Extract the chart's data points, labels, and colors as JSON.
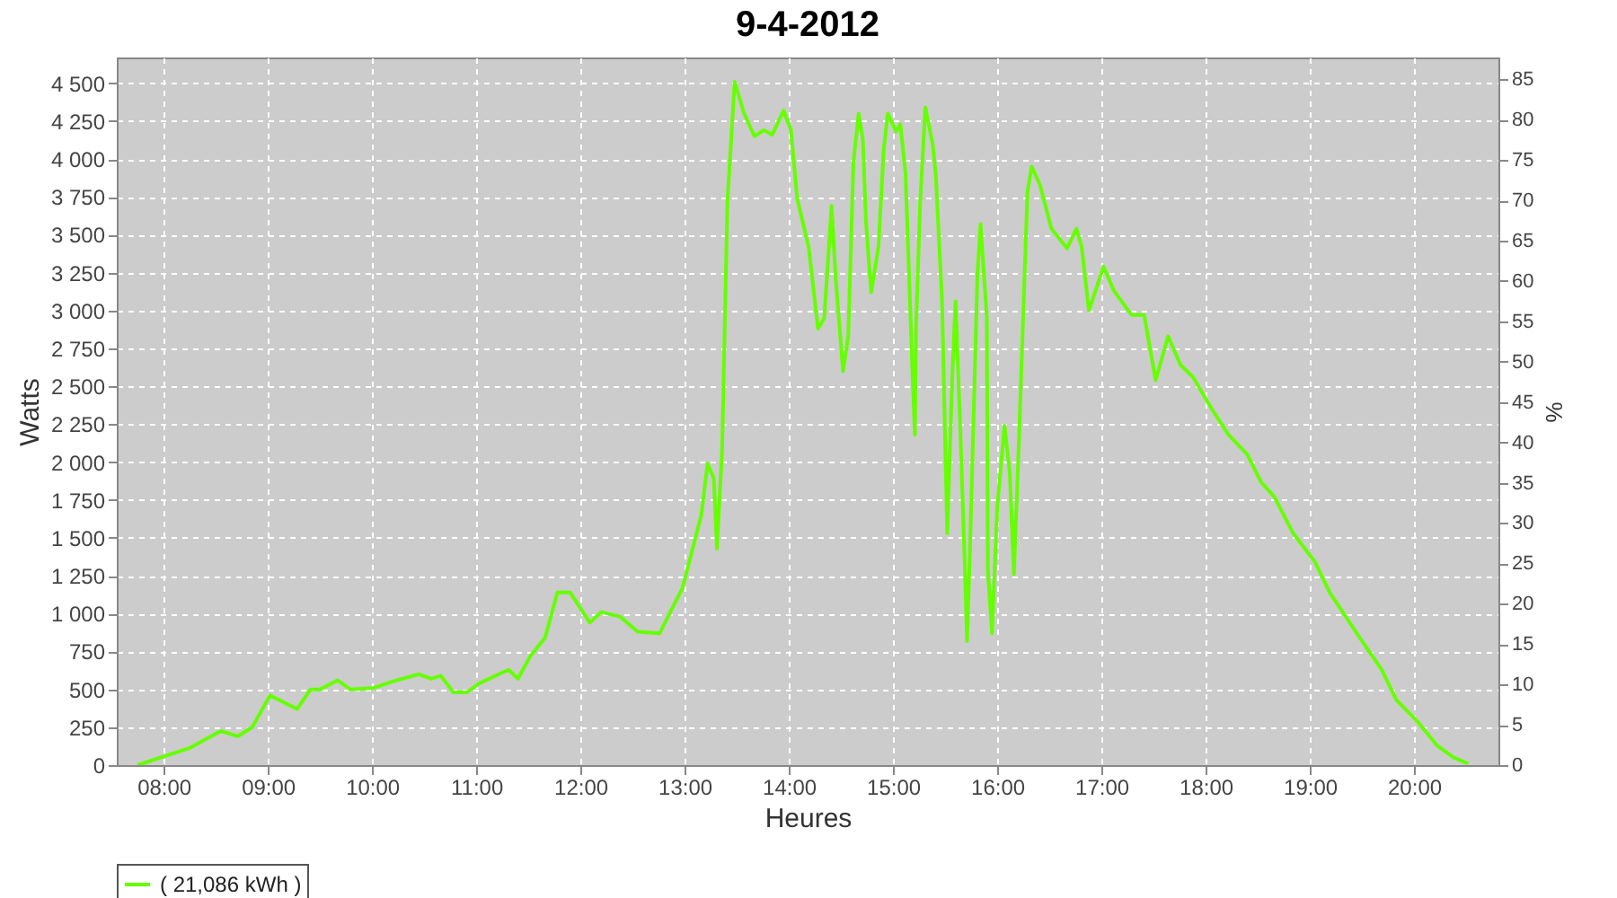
{
  "chart_data": {
    "type": "line",
    "title": "9-4-2012",
    "xlabel": "Heures",
    "ylabel": "Watts",
    "y2label": "%",
    "x": [
      7.75,
      8.24,
      8.55,
      8.71,
      8.85,
      9.02,
      9.28,
      9.41,
      9.5,
      9.67,
      9.79,
      10.02,
      10.19,
      10.45,
      10.57,
      10.66,
      10.78,
      10.91,
      11.03,
      11.31,
      11.4,
      11.52,
      11.66,
      11.78,
      11.9,
      12.09,
      12.2,
      12.38,
      12.55,
      12.76,
      12.98,
      13.16,
      13.22,
      13.28,
      13.31,
      13.36,
      13.41,
      13.48,
      13.57,
      13.67,
      13.76,
      13.84,
      13.95,
      14.02,
      14.08,
      14.19,
      14.28,
      14.34,
      14.41,
      14.45,
      14.52,
      14.57,
      14.62,
      14.67,
      14.71,
      14.74,
      14.79,
      14.86,
      14.91,
      14.95,
      15.03,
      15.07,
      15.12,
      15.19,
      15.21,
      15.22,
      15.26,
      15.31,
      15.38,
      15.41,
      15.47,
      15.52,
      15.57,
      15.6,
      15.64,
      15.69,
      15.71,
      15.74,
      15.81,
      15.84,
      15.9,
      15.91,
      15.95,
      16.0,
      16.07,
      16.12,
      16.16,
      16.21,
      16.26,
      16.29,
      16.33,
      16.41,
      16.52,
      16.67,
      16.76,
      16.81,
      16.88,
      17.02,
      17.12,
      17.29,
      17.41,
      17.52,
      17.64,
      17.76,
      17.88,
      18.05,
      18.22,
      18.4,
      18.53,
      18.66,
      18.84,
      19.05,
      19.19,
      19.48,
      19.69,
      19.83,
      20.03,
      20.22,
      20.38,
      20.52
    ],
    "series": [
      {
        "name": "( 21,086 kWh )",
        "color": "#66ff00",
        "values": [
          0,
          110,
          225,
          190,
          250,
          460,
          370,
          500,
          500,
          560,
          500,
          510,
          550,
          600,
          570,
          590,
          480,
          480,
          540,
          630,
          570,
          720,
          840,
          1140,
          1140,
          940,
          1010,
          980,
          880,
          870,
          1170,
          1650,
          1990,
          1890,
          1430,
          2090,
          3710,
          4510,
          4300,
          4150,
          4190,
          4160,
          4320,
          4190,
          3740,
          3420,
          2880,
          2950,
          3690,
          3210,
          2600,
          2830,
          3980,
          4300,
          4130,
          3590,
          3120,
          3420,
          4060,
          4300,
          4180,
          4230,
          3900,
          2520,
          2180,
          2880,
          3710,
          4340,
          4100,
          3900,
          3070,
          1530,
          2600,
          3060,
          2320,
          1290,
          820,
          1460,
          3240,
          3570,
          2950,
          1290,
          870,
          1700,
          2240,
          1930,
          1260,
          2170,
          3190,
          3780,
          3950,
          3830,
          3540,
          3410,
          3540,
          3420,
          3000,
          3290,
          3130,
          2970,
          2970,
          2540,
          2830,
          2640,
          2560,
          2360,
          2180,
          2050,
          1870,
          1770,
          1530,
          1340,
          1140,
          840,
          630,
          430,
          290,
          130,
          50,
          10
        ]
      }
    ],
    "xlim": [
      7.55,
      20.81
    ],
    "xticks": [
      {
        "value": 8,
        "label": "08:00"
      },
      {
        "value": 9,
        "label": "09:00"
      },
      {
        "value": 10,
        "label": "10:00"
      },
      {
        "value": 11,
        "label": "11:00"
      },
      {
        "value": 12,
        "label": "12:00"
      },
      {
        "value": 13,
        "label": "13:00"
      },
      {
        "value": 14,
        "label": "14:00"
      },
      {
        "value": 15,
        "label": "15:00"
      },
      {
        "value": 16,
        "label": "16:00"
      },
      {
        "value": 17,
        "label": "17:00"
      },
      {
        "value": 18,
        "label": "18:00"
      },
      {
        "value": 19,
        "label": "19:00"
      },
      {
        "value": 20,
        "label": "20:00"
      }
    ],
    "ylim": [
      0,
      4670
    ],
    "yticks": [
      0,
      250,
      500,
      750,
      {
        "value": 1000,
        "label": "1 000"
      },
      {
        "value": 1250,
        "label": "1 250"
      },
      {
        "value": 1500,
        "label": "1 500"
      },
      {
        "value": 1750,
        "label": "1 750"
      },
      {
        "value": 2000,
        "label": "2 000"
      },
      {
        "value": 2250,
        "label": "2 250"
      },
      {
        "value": 2500,
        "label": "2 500"
      },
      {
        "value": 2750,
        "label": "2 750"
      },
      {
        "value": 3000,
        "label": "3 000"
      },
      {
        "value": 3250,
        "label": "3 250"
      },
      {
        "value": 3500,
        "label": "3 500"
      },
      {
        "value": 3750,
        "label": "3 750"
      },
      {
        "value": 4000,
        "label": "4 000"
      },
      {
        "value": 4250,
        "label": "4 250"
      },
      {
        "value": 4500,
        "label": "4 500"
      }
    ],
    "y2lim": [
      0,
      87.7
    ],
    "y2ticks": [
      0,
      5,
      10,
      15,
      20,
      25,
      30,
      35,
      40,
      45,
      50,
      55,
      60,
      65,
      70,
      75,
      80,
      85
    ],
    "grid": true,
    "legend": "bottom",
    "line_style": "solid",
    "marker": "none"
  }
}
